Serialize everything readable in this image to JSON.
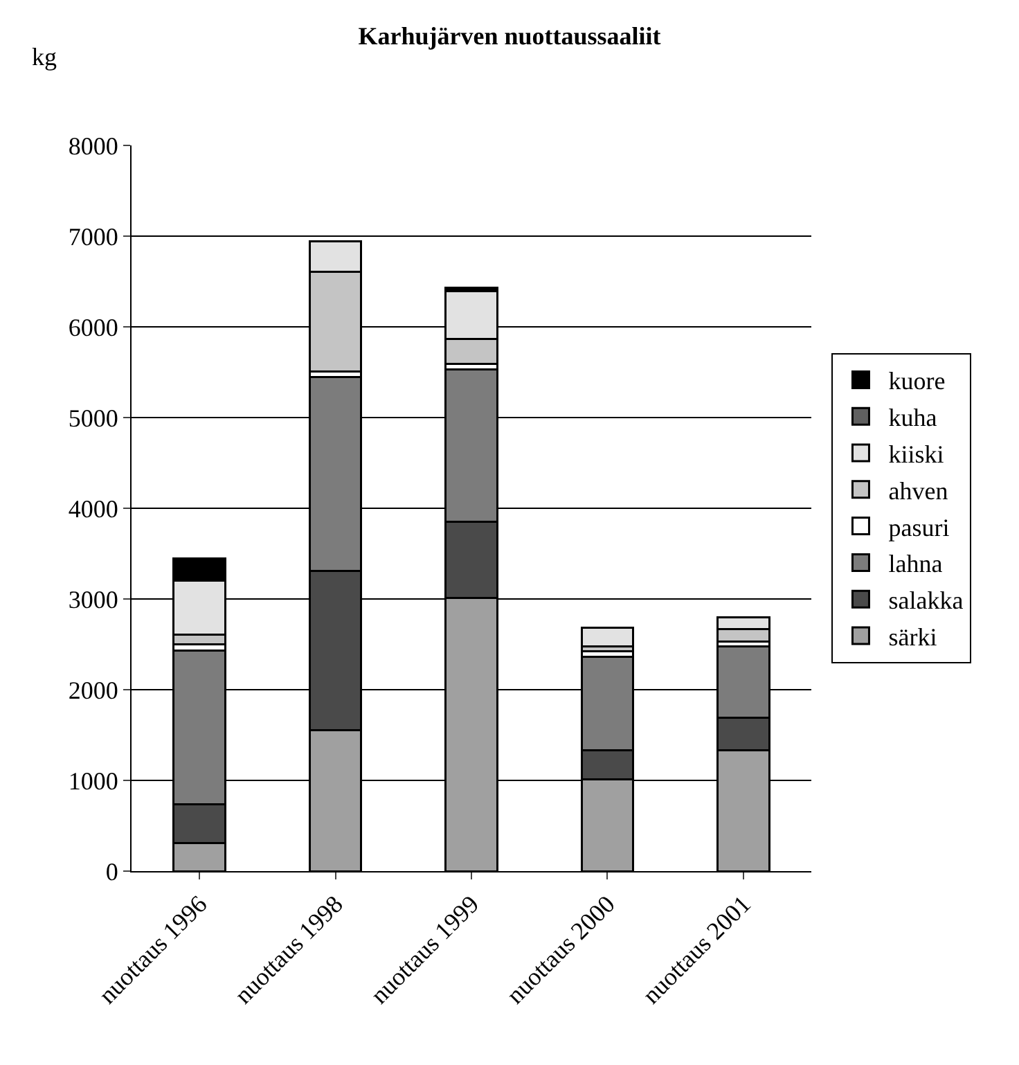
{
  "chart_data": {
    "type": "bar",
    "title": "Karhujärven nuottaussaaliit",
    "ylabel": "kg",
    "stacked": true,
    "categories": [
      "nuottaus 1996",
      "nuottaus 1998",
      "nuottaus 1999",
      "nuottaus 2000",
      "nuottaus 2001"
    ],
    "series": [
      {
        "name": "särki",
        "color": "#a0a0a0",
        "values": [
          310,
          1550,
          3010,
          1010,
          1330
        ]
      },
      {
        "name": "salakka",
        "color": "#4a4a4a",
        "values": [
          430,
          1760,
          840,
          320,
          360
        ]
      },
      {
        "name": "lahna",
        "color": "#7c7c7c",
        "values": [
          1690,
          2140,
          1680,
          1030,
          790
        ]
      },
      {
        "name": "pasuri",
        "color": "#ffffff",
        "values": [
          70,
          60,
          60,
          60,
          50
        ]
      },
      {
        "name": "ahven",
        "color": "#c4c4c4",
        "values": [
          110,
          1100,
          280,
          60,
          140
        ]
      },
      {
        "name": "kiiski",
        "color": "#e2e2e2",
        "values": [
          590,
          330,
          520,
          200,
          130
        ]
      },
      {
        "name": "kuha",
        "color": "#606060",
        "values": [
          0,
          0,
          0,
          0,
          0
        ]
      },
      {
        "name": "kuore",
        "color": "#000000",
        "values": [
          250,
          0,
          40,
          0,
          0
        ]
      }
    ],
    "ylim": [
      0,
      8000
    ],
    "yticks": [
      0,
      1000,
      2000,
      3000,
      4000,
      5000,
      6000,
      7000,
      8000
    ],
    "grid": "y",
    "legend": "right"
  }
}
